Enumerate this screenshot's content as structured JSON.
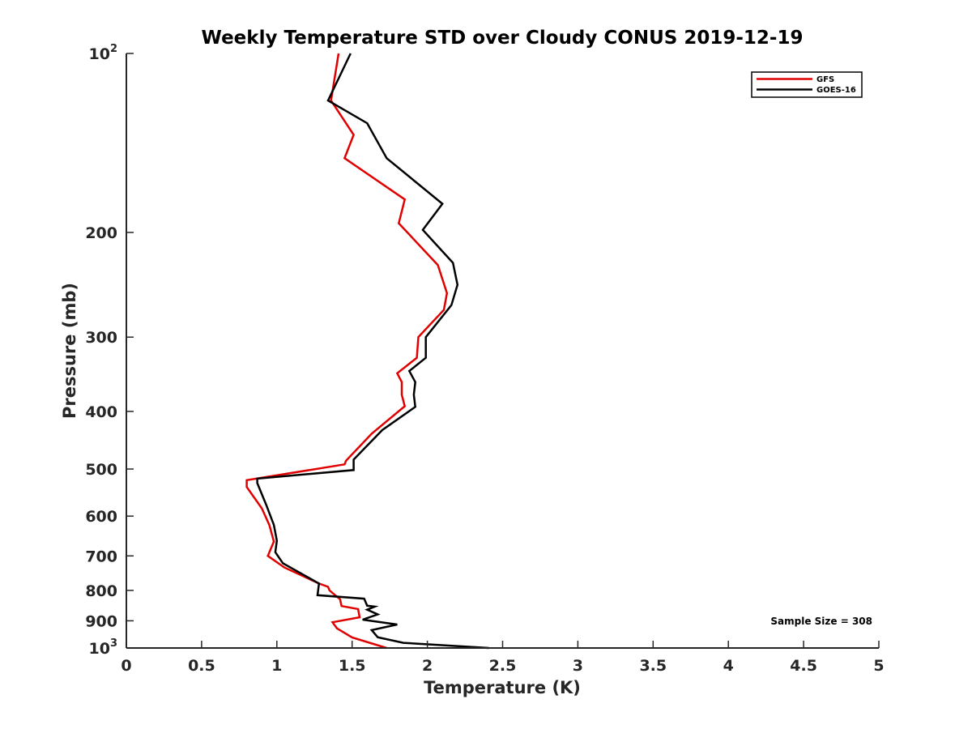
{
  "chart_data": {
    "type": "line",
    "title": "Weekly Temperature STD over Cloudy CONUS 2019-12-19",
    "xlabel": "Temperature (K)",
    "ylabel": "Pressure (mb)",
    "xlim": [
      0,
      5
    ],
    "ylim": [
      1000,
      100
    ],
    "y_scale": "log",
    "y_reversed": true,
    "grid": false,
    "legend_position": "top-right",
    "x_ticks": [
      0,
      0.5,
      1,
      1.5,
      2,
      2.5,
      3,
      3.5,
      4,
      4.5,
      5
    ],
    "x_tick_labels": [
      "0",
      "0.5",
      "1",
      "1.5",
      "2",
      "2.5",
      "3",
      "3.5",
      "4",
      "4.5",
      "5"
    ],
    "y_ticks": [
      100,
      200,
      300,
      400,
      500,
      600,
      700,
      800,
      900,
      1000
    ],
    "y_tick_labels": [
      {
        "base": "10",
        "exp": "2"
      },
      {
        "base": "200",
        "exp": ""
      },
      {
        "base": "300",
        "exp": ""
      },
      {
        "base": "400",
        "exp": ""
      },
      {
        "base": "500",
        "exp": ""
      },
      {
        "base": "600",
        "exp": ""
      },
      {
        "base": "700",
        "exp": ""
      },
      {
        "base": "800",
        "exp": ""
      },
      {
        "base": "900",
        "exp": ""
      },
      {
        "base": "10",
        "exp": "3"
      }
    ],
    "annotation": "Sample Size = 308",
    "series": [
      {
        "name": "GFS",
        "color": "#e00000",
        "points": [
          [
            1.41,
            100
          ],
          [
            1.36,
            120
          ],
          [
            1.51,
            137
          ],
          [
            1.45,
            150
          ],
          [
            1.85,
            176
          ],
          [
            1.81,
            193
          ],
          [
            2.07,
            227
          ],
          [
            2.13,
            253
          ],
          [
            2.11,
            270
          ],
          [
            1.94,
            300
          ],
          [
            1.93,
            325
          ],
          [
            1.8,
            345
          ],
          [
            1.83,
            357
          ],
          [
            1.83,
            375
          ],
          [
            1.85,
            392
          ],
          [
            1.63,
            436
          ],
          [
            1.46,
            484
          ],
          [
            1.45,
            491
          ],
          [
            0.8,
            522
          ],
          [
            0.8,
            536
          ],
          [
            0.9,
            582
          ],
          [
            0.95,
            621
          ],
          [
            0.98,
            662
          ],
          [
            0.94,
            700
          ],
          [
            1.05,
            732
          ],
          [
            1.28,
            779
          ],
          [
            1.34,
            789
          ],
          [
            1.35,
            800
          ],
          [
            1.42,
            828
          ],
          [
            1.43,
            850
          ],
          [
            1.54,
            860
          ],
          [
            1.55,
            888
          ],
          [
            1.37,
            905
          ],
          [
            1.4,
            927
          ],
          [
            1.5,
            960
          ],
          [
            1.73,
            1000
          ]
        ]
      },
      {
        "name": "GOES-16",
        "color": "#000000",
        "points": [
          [
            1.49,
            100
          ],
          [
            1.34,
            120
          ],
          [
            1.6,
            131
          ],
          [
            1.73,
            150
          ],
          [
            2.1,
            179
          ],
          [
            1.97,
            198
          ],
          [
            2.17,
            225
          ],
          [
            2.2,
            245
          ],
          [
            2.16,
            265
          ],
          [
            1.99,
            300
          ],
          [
            1.99,
            325
          ],
          [
            1.88,
            342
          ],
          [
            1.92,
            357
          ],
          [
            1.91,
            375
          ],
          [
            1.92,
            393
          ],
          [
            1.7,
            430
          ],
          [
            1.51,
            482
          ],
          [
            1.51,
            502
          ],
          [
            0.87,
            519
          ],
          [
            0.87,
            528
          ],
          [
            0.93,
            575
          ],
          [
            0.98,
            621
          ],
          [
            1.0,
            660
          ],
          [
            0.99,
            690
          ],
          [
            1.04,
            720
          ],
          [
            1.2,
            759
          ],
          [
            1.28,
            779
          ],
          [
            1.27,
            815
          ],
          [
            1.58,
            826
          ],
          [
            1.6,
            849
          ],
          [
            1.65,
            852
          ],
          [
            1.6,
            862
          ],
          [
            1.67,
            878
          ],
          [
            1.57,
            896
          ],
          [
            1.8,
            913
          ],
          [
            1.63,
            933
          ],
          [
            1.67,
            959
          ],
          [
            1.84,
            980
          ],
          [
            2.41,
            1000
          ]
        ]
      }
    ]
  }
}
